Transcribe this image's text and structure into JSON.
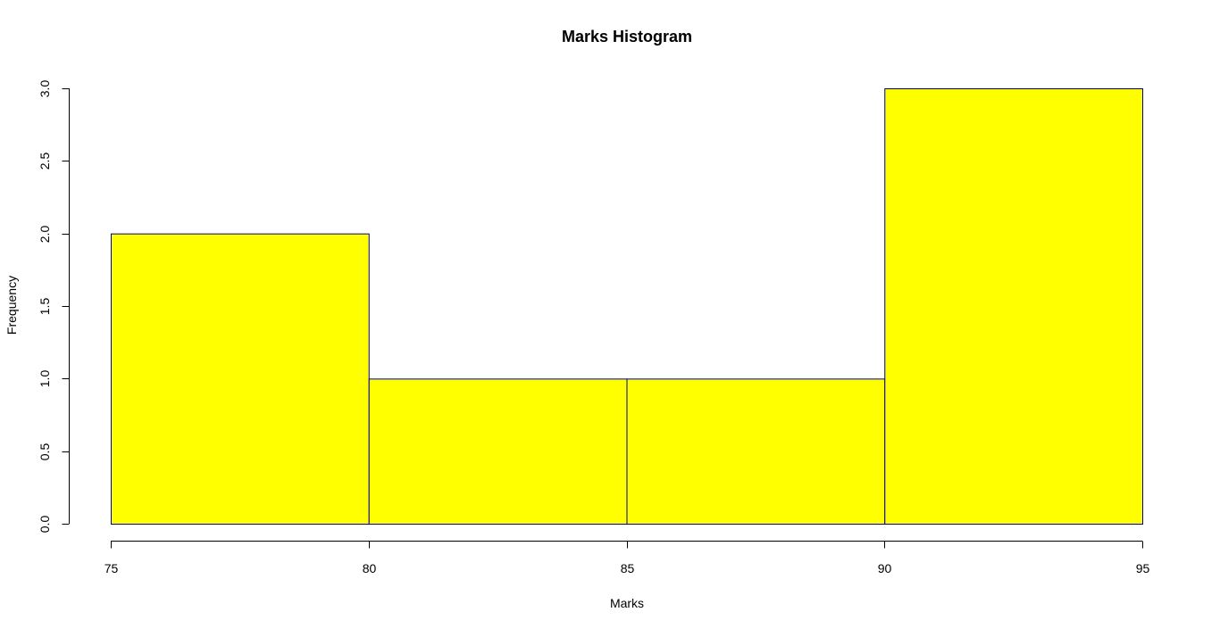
{
  "chart_data": {
    "type": "bar",
    "title": "Marks Histogram",
    "xlabel": "Marks",
    "ylabel": "Frequency",
    "bins": [
      {
        "x_start": 75,
        "x_end": 80,
        "value": 2
      },
      {
        "x_start": 80,
        "x_end": 85,
        "value": 1
      },
      {
        "x_start": 85,
        "x_end": 90,
        "value": 1
      },
      {
        "x_start": 90,
        "x_end": 95,
        "value": 3
      }
    ],
    "xlim": [
      75,
      95
    ],
    "ylim": [
      0,
      3
    ],
    "x_ticks": [
      "75",
      "80",
      "85",
      "90",
      "95"
    ],
    "y_ticks": [
      "0.0",
      "0.5",
      "1.0",
      "1.5",
      "2.0",
      "2.5",
      "3.0"
    ],
    "grid": false,
    "legend": "none",
    "colors": {
      "bar_fill": "#ffff00",
      "bar_border": "#00008b"
    }
  }
}
